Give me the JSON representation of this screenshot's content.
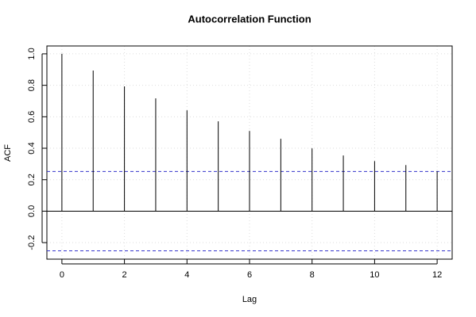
{
  "chart_data": {
    "type": "acf",
    "title": "Autocorrelation Function",
    "x_label": "Lag",
    "y_label": "ACF",
    "x": [
      0,
      1,
      2,
      3,
      4,
      5,
      6,
      7,
      8,
      9,
      10,
      11,
      12
    ],
    "values": [
      1.0,
      0.894,
      0.793,
      0.717,
      0.641,
      0.571,
      0.51,
      0.46,
      0.399,
      0.354,
      0.318,
      0.293,
      0.253
    ],
    "color": "#000000",
    "conf_limits": [
      0.252,
      -0.252
    ],
    "conf_color": "#3333cc",
    "xlim": [
      -0.48,
      12.48
    ],
    "xticks": [
      0,
      2,
      4,
      6,
      8,
      10,
      12
    ],
    "ylim": [
      -0.305,
      1.05
    ],
    "yticks": [
      -0.2,
      {
        "value": 0,
        "label": "0.0"
      },
      0.2,
      0.4,
      0.6,
      0.8,
      {
        "value": 1,
        "label": "1.0"
      }
    ],
    "grid": true
  }
}
